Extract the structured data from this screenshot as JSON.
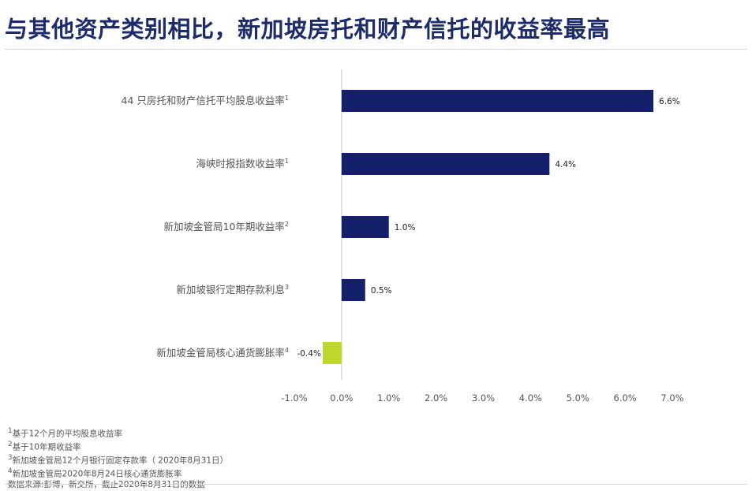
{
  "title": "与其他资产类别相比，新加坡房托和财产信托的收益率最高",
  "chart_data": {
    "type": "bar",
    "orientation": "horizontal",
    "categories": [
      {
        "label": "44 只房托和财产信托平均股息收益率",
        "sup": "1"
      },
      {
        "label": "海峡时报指数收益率",
        "sup": "1"
      },
      {
        "label": "新加坡金管局10年期收益率",
        "sup": "2"
      },
      {
        "label": "新加坡银行定期存款利息",
        "sup": "3"
      },
      {
        "label": "新加坡金管局核心通货膨胀率",
        "sup": "4"
      }
    ],
    "values": [
      6.6,
      4.4,
      1.0,
      0.5,
      -0.4
    ],
    "value_labels": [
      "6.6%",
      "4.4%",
      "1.0%",
      "0.5%",
      "-0.4%"
    ],
    "xlim": [
      -1.0,
      7.0
    ],
    "x_ticks": [
      -1.0,
      0.0,
      1.0,
      2.0,
      3.0,
      4.0,
      5.0,
      6.0,
      7.0
    ],
    "x_tick_labels": [
      "-1.0%",
      "0.0%",
      "1.0%",
      "2.0%",
      "3.0%",
      "4.0%",
      "5.0%",
      "6.0%",
      "7.0%"
    ],
    "positive_color": "#14206a",
    "negative_color": "#c2d630",
    "grid": false,
    "legend": "none"
  },
  "footnotes": [
    {
      "sup": "1",
      "text": "基于12个月的平均股息收益率"
    },
    {
      "sup": "2",
      "text": "基于10年期收益率"
    },
    {
      "sup": "3",
      "text": "新加坡金管局12个月银行固定存款率（ 2020年8月31日）"
    },
    {
      "sup": "4",
      "text": "新加坡金管局2020年8月24日核心通货膨胀率"
    },
    {
      "sup": "",
      "text": "数据来源:彭博，新交所，截止2020年8月31日的数据"
    }
  ]
}
